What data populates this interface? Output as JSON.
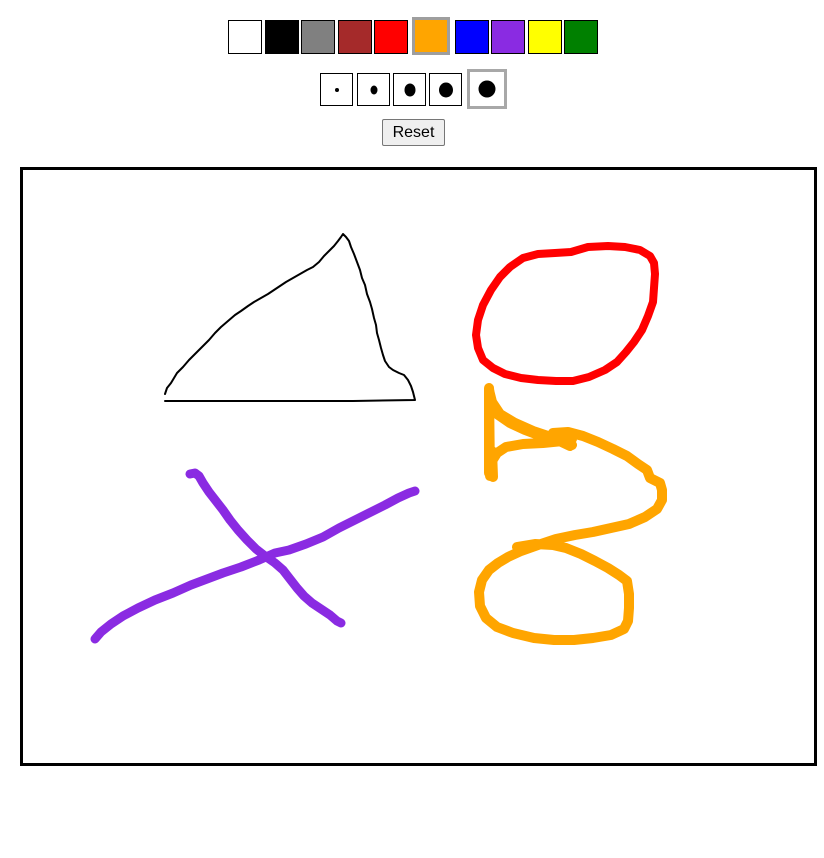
{
  "toolbar": {
    "colors": [
      {
        "name": "white",
        "hex": "#ffffff",
        "selected": false
      },
      {
        "name": "black",
        "hex": "#000000",
        "selected": false
      },
      {
        "name": "gray",
        "hex": "#808080",
        "selected": false
      },
      {
        "name": "brown",
        "hex": "#a52a2a",
        "selected": false
      },
      {
        "name": "red",
        "hex": "#ff0000",
        "selected": false
      },
      {
        "name": "orange",
        "hex": "#ffa500",
        "selected": true
      },
      {
        "name": "blue",
        "hex": "#0000ff",
        "selected": false
      },
      {
        "name": "purple",
        "hex": "#8a2be2",
        "selected": false
      },
      {
        "name": "yellow",
        "hex": "#ffff00",
        "selected": false
      },
      {
        "name": "green",
        "hex": "#008000",
        "selected": false
      }
    ],
    "brush_sizes": [
      {
        "level": 1,
        "selected": false
      },
      {
        "level": 2,
        "selected": false
      },
      {
        "level": 3,
        "selected": false
      },
      {
        "level": 4,
        "selected": false
      },
      {
        "level": 5,
        "selected": true
      }
    ],
    "reset_label": "Reset"
  },
  "canvas": {
    "strokes": [
      {
        "shape": "triangle",
        "color": "#000000"
      },
      {
        "shape": "circle",
        "color": "#ff0000"
      },
      {
        "shape": "cross",
        "color": "#8a2be2"
      },
      {
        "shape": "figure-eight",
        "color": "#ffa500"
      }
    ]
  }
}
